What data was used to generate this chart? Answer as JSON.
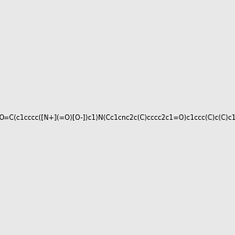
{
  "smiles": "O=C(c1cccc([N+](=O)[O-])c1)N(Cc1cnc2c(C)cccc2c1=O)c1ccc(C)c(C)c1",
  "title": "",
  "bg_color": "#e8e8e8",
  "bond_color": "#000000",
  "atom_colors": {
    "N": "#0000ff",
    "O": "#ff0000",
    "C": "#000000"
  },
  "figsize": [
    3.0,
    3.0
  ],
  "dpi": 100
}
